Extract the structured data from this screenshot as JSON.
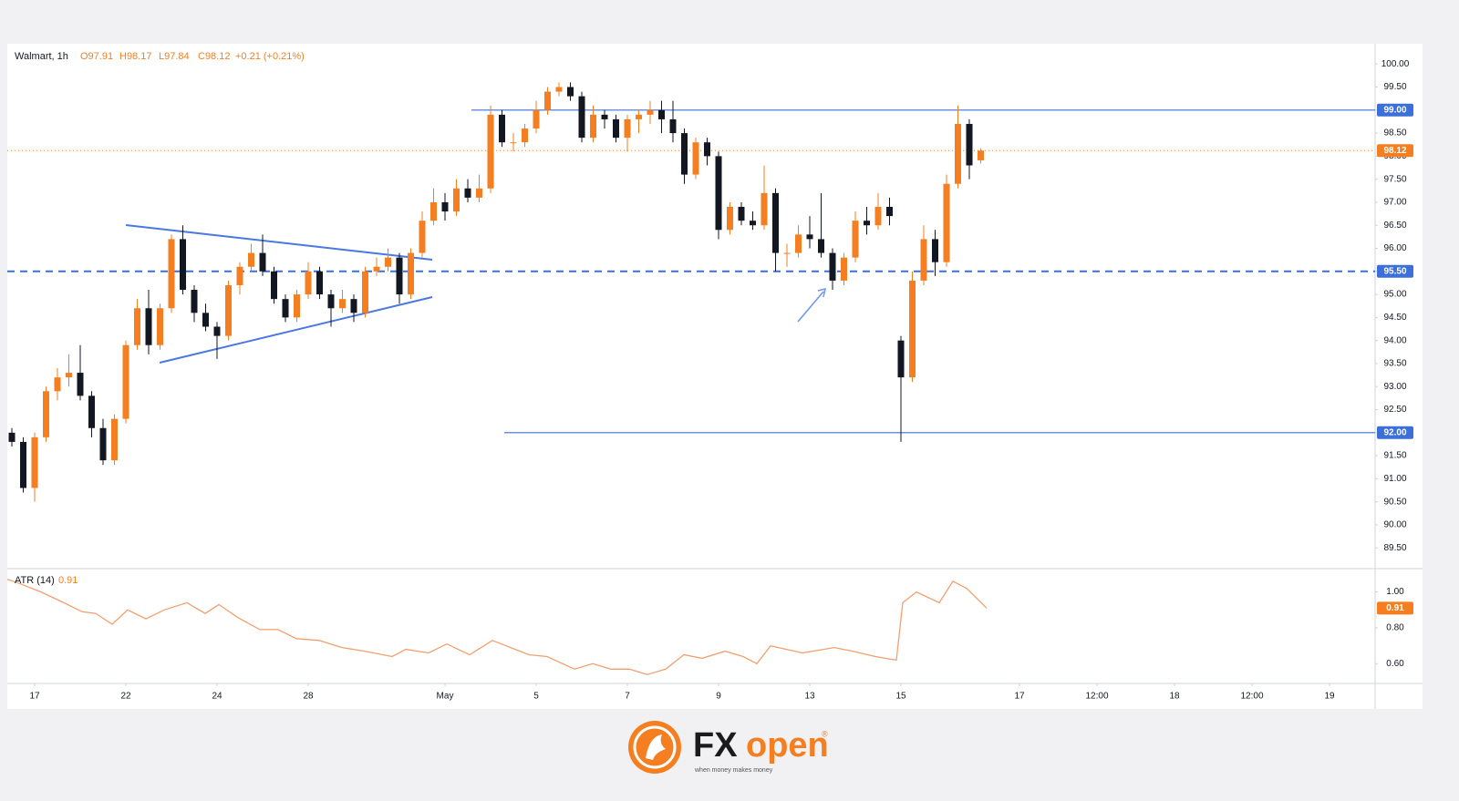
{
  "chart_data": [
    {
      "type": "candlestick",
      "title": "Walmart, 1h",
      "ohlc_labels": [
        "O97.91",
        "H98.17",
        "L97.84",
        "C98.12"
      ],
      "change_label": "+0.21 (+0.21%)",
      "up_color": "#f57f20",
      "down_color": "#131722",
      "grid": false,
      "xlim": [
        -0.6,
        29.4
      ],
      "ylim": [
        89.05,
        100.4
      ],
      "xticks": [
        {
          "value": 0,
          "label": "17"
        },
        {
          "value": 2,
          "label": "22"
        },
        {
          "value": 4,
          "label": "24"
        },
        {
          "value": 6,
          "label": "28"
        },
        {
          "value": 9,
          "label": "May"
        },
        {
          "value": 11,
          "label": "5"
        },
        {
          "value": 13,
          "label": "7"
        },
        {
          "value": 15,
          "label": "9"
        },
        {
          "value": 17,
          "label": "13"
        },
        {
          "value": 19,
          "label": "15"
        },
        {
          "value": 21.6,
          "label": "17"
        },
        {
          "value": 23.3,
          "label": "12:00"
        },
        {
          "value": 25,
          "label": "18"
        },
        {
          "value": 26.7,
          "label": "12:00"
        },
        {
          "value": 28.4,
          "label": "19"
        }
      ],
      "yticks": [
        {
          "value": 89.5,
          "label": "89.50"
        },
        {
          "value": 90,
          "label": "90.00"
        },
        {
          "value": 90.5,
          "label": "90.50"
        },
        {
          "value": 91,
          "label": "91.00"
        },
        {
          "value": 91.5,
          "label": "91.50"
        },
        {
          "value": 92,
          "label": "92.00"
        },
        {
          "value": 92.5,
          "label": "92.50"
        },
        {
          "value": 93,
          "label": "93.00"
        },
        {
          "value": 93.5,
          "label": "93.50"
        },
        {
          "value": 94,
          "label": "94.00"
        },
        {
          "value": 94.5,
          "label": "94.50"
        },
        {
          "value": 95,
          "label": "95.00"
        },
        {
          "value": 95.5,
          "label": "95.50"
        },
        {
          "value": 96,
          "label": "96.00"
        },
        {
          "value": 96.5,
          "label": "96.50"
        },
        {
          "value": 97,
          "label": "97.00"
        },
        {
          "value": 97.5,
          "label": "97.50"
        },
        {
          "value": 98,
          "label": "98.00"
        },
        {
          "value": 98.5,
          "label": "98.50"
        },
        {
          "value": 99,
          "label": "99.00"
        },
        {
          "value": 99.5,
          "label": "99.50"
        },
        {
          "value": 100,
          "label": "100.00"
        }
      ],
      "levels": [
        {
          "value": 99,
          "label": "99.00",
          "color": "#3d6fd9",
          "dashed": false
        },
        {
          "value": 95.5,
          "label": "95.50",
          "color": "#3d6fd9",
          "dashed": true
        },
        {
          "value": 92,
          "label": "92.00",
          "color": "#3d6fd9",
          "dashed": false
        }
      ],
      "x": [
        -0.5,
        -0.25,
        0,
        0.25,
        0.5,
        0.75,
        1,
        1.25,
        1.5,
        1.75,
        2,
        2.25,
        2.5,
        2.75,
        3,
        3.25,
        3.5,
        3.75,
        4,
        4.25,
        4.5,
        4.75,
        5,
        5.25,
        5.5,
        5.75,
        6,
        6.25,
        6.5,
        6.75,
        7,
        7.25,
        7.5,
        7.75,
        8,
        8.25,
        8.5,
        8.75,
        9,
        9.25,
        9.5,
        9.75,
        10,
        10.25,
        10.5,
        10.75,
        11,
        11.25,
        11.5,
        11.75,
        12,
        12.25,
        12.5,
        12.75,
        13,
        13.25,
        13.5,
        13.75,
        14,
        14.25,
        14.5,
        14.75,
        15,
        15.25,
        15.5,
        15.75,
        16,
        16.25,
        16.5,
        16.75,
        17,
        17.25,
        17.5,
        17.75,
        18,
        18.25,
        18.5,
        18.75,
        19,
        19.25,
        19.5,
        19.75,
        20,
        20.25,
        20.5,
        20.75
      ],
      "open": [
        92.0,
        91.8,
        90.8,
        91.9,
        92.9,
        93.2,
        93.3,
        92.8,
        92.1,
        91.4,
        92.3,
        93.9,
        94.7,
        93.9,
        94.7,
        96.2,
        95.1,
        94.6,
        94.3,
        94.1,
        95.2,
        95.6,
        95.9,
        95.5,
        94.9,
        94.5,
        95.0,
        95.5,
        95.0,
        94.7,
        94.9,
        94.6,
        95.5,
        95.6,
        95.8,
        95.0,
        95.9,
        96.6,
        97.0,
        96.8,
        97.3,
        97.1,
        97.3,
        98.9,
        98.3,
        98.3,
        98.6,
        99.0,
        99.4,
        99.5,
        99.3,
        98.4,
        98.9,
        98.8,
        98.4,
        98.8,
        98.9,
        99.0,
        98.8,
        98.5,
        97.6,
        98.3,
        98.0,
        96.4,
        96.9,
        96.6,
        96.5,
        97.2,
        95.9,
        95.9,
        96.3,
        96.2,
        95.9,
        95.3,
        95.8,
        96.6,
        96.5,
        96.9,
        94.0,
        93.2,
        95.3,
        96.2,
        95.7,
        97.4,
        98.7,
        97.91
      ],
      "high": [
        92.1,
        91.9,
        92.0,
        93.0,
        93.4,
        93.7,
        93.9,
        92.9,
        92.3,
        92.4,
        94.0,
        94.9,
        95.1,
        94.8,
        96.3,
        96.5,
        95.2,
        94.8,
        94.4,
        95.3,
        95.7,
        96.1,
        96.3,
        95.6,
        95.0,
        95.1,
        95.7,
        95.6,
        95.1,
        95.1,
        95.0,
        95.6,
        95.8,
        96.0,
        95.9,
        96.0,
        96.8,
        97.3,
        97.2,
        97.5,
        97.5,
        97.6,
        99.1,
        99.0,
        98.5,
        98.7,
        99.2,
        99.5,
        99.6,
        99.6,
        99.4,
        99.1,
        99.0,
        98.9,
        98.9,
        99.0,
        99.2,
        99.2,
        99.2,
        98.6,
        98.4,
        98.4,
        98.1,
        97.0,
        97.0,
        96.8,
        97.8,
        97.3,
        96.1,
        96.5,
        96.7,
        97.2,
        96.0,
        95.9,
        96.8,
        96.9,
        97.2,
        97.1,
        94.1,
        95.5,
        96.5,
        96.4,
        97.6,
        99.1,
        98.8,
        98.17
      ],
      "low": [
        91.7,
        90.7,
        90.5,
        91.8,
        92.7,
        93.0,
        92.7,
        91.9,
        91.3,
        91.3,
        92.2,
        93.8,
        93.7,
        93.8,
        94.6,
        95.0,
        94.4,
        94.2,
        93.6,
        94.0,
        95.0,
        95.5,
        95.4,
        94.8,
        94.4,
        94.4,
        94.9,
        94.9,
        94.3,
        94.6,
        94.4,
        94.5,
        95.4,
        95.5,
        94.8,
        94.9,
        95.8,
        96.5,
        96.6,
        96.7,
        97.0,
        97.0,
        97.2,
        98.2,
        98.1,
        98.2,
        98.5,
        98.9,
        99.3,
        99.2,
        98.3,
        98.3,
        98.6,
        98.3,
        98.1,
        98.5,
        98.7,
        98.5,
        98.3,
        97.4,
        97.5,
        97.8,
        96.2,
        96.3,
        96.5,
        96.4,
        96.4,
        95.5,
        95.6,
        95.8,
        96.0,
        95.8,
        95.1,
        95.2,
        95.7,
        96.3,
        96.4,
        96.5,
        91.8,
        93.1,
        95.2,
        95.4,
        95.6,
        97.3,
        97.5,
        97.84
      ],
      "close": [
        91.8,
        90.8,
        91.9,
        92.9,
        93.2,
        93.3,
        92.8,
        92.1,
        91.4,
        92.3,
        93.9,
        94.7,
        93.9,
        94.7,
        96.2,
        95.1,
        94.6,
        94.3,
        94.1,
        95.2,
        95.6,
        95.9,
        95.5,
        94.9,
        94.5,
        95.0,
        95.5,
        95.0,
        94.7,
        94.9,
        94.6,
        95.5,
        95.6,
        95.8,
        95.0,
        95.9,
        96.6,
        97.0,
        96.8,
        97.3,
        97.1,
        97.3,
        98.9,
        98.3,
        98.3,
        98.6,
        99.0,
        99.4,
        99.5,
        99.3,
        98.4,
        98.9,
        98.8,
        98.4,
        98.8,
        98.9,
        99.0,
        98.8,
        98.5,
        97.6,
        98.3,
        98.0,
        96.4,
        96.9,
        96.6,
        96.5,
        97.2,
        95.9,
        95.9,
        96.3,
        96.2,
        95.9,
        95.3,
        95.8,
        96.6,
        96.5,
        96.9,
        96.7,
        93.2,
        95.3,
        96.2,
        95.7,
        97.4,
        98.7,
        97.8,
        98.12
      ]
    },
    {
      "type": "line",
      "title": "ATR (14)",
      "color": "#f0a070",
      "ylim": [
        0.49,
        1.13
      ],
      "yticks": [
        {
          "value": 0.6,
          "label": "0.60"
        },
        {
          "value": 0.8,
          "label": "0.80"
        },
        {
          "value": 1,
          "label": "1.00"
        }
      ],
      "x": [
        -0.6,
        -0.36,
        0.14,
        0.64,
        1.04,
        1.34,
        1.7,
        2.04,
        2.44,
        2.84,
        3.34,
        3.74,
        4.04,
        4.44,
        4.94,
        5.34,
        5.74,
        6.24,
        6.74,
        7.24,
        7.84,
        8.14,
        8.64,
        9.04,
        9.54,
        10.04,
        10.44,
        10.84,
        11.24,
        11.84,
        12.24,
        12.64,
        13.04,
        13.44,
        13.84,
        14.24,
        14.64,
        15.14,
        15.54,
        15.84,
        16.14,
        16.84,
        17.54,
        17.94,
        18.44,
        18.9,
        19.04,
        19.34,
        19.84,
        20.14,
        20.44,
        20.88
      ],
      "values": [
        1.07,
        1.05,
        1.0,
        0.94,
        0.89,
        0.88,
        0.82,
        0.9,
        0.85,
        0.9,
        0.94,
        0.88,
        0.93,
        0.86,
        0.79,
        0.79,
        0.74,
        0.73,
        0.69,
        0.67,
        0.64,
        0.68,
        0.66,
        0.71,
        0.65,
        0.73,
        0.69,
        0.65,
        0.64,
        0.57,
        0.6,
        0.57,
        0.57,
        0.54,
        0.57,
        0.65,
        0.63,
        0.67,
        0.64,
        0.6,
        0.7,
        0.66,
        0.69,
        0.67,
        0.64,
        0.62,
        0.94,
        1.0,
        0.94,
        1.06,
        1.02,
        0.91
      ]
    }
  ],
  "branding": {
    "name_parts": [
      "FX",
      "open"
    ],
    "mark": "®",
    "tagline": "when money makes money"
  }
}
